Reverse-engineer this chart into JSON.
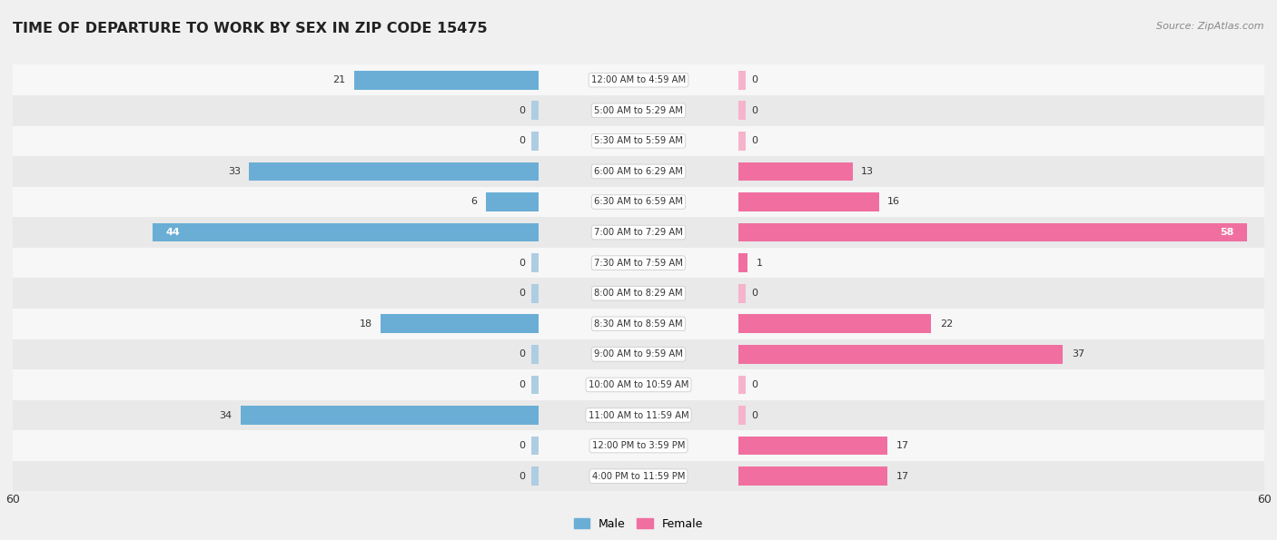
{
  "title": "TIME OF DEPARTURE TO WORK BY SEX IN ZIP CODE 15475",
  "source": "Source: ZipAtlas.com",
  "categories": [
    "12:00 AM to 4:59 AM",
    "5:00 AM to 5:29 AM",
    "5:30 AM to 5:59 AM",
    "6:00 AM to 6:29 AM",
    "6:30 AM to 6:59 AM",
    "7:00 AM to 7:29 AM",
    "7:30 AM to 7:59 AM",
    "8:00 AM to 8:29 AM",
    "8:30 AM to 8:59 AM",
    "9:00 AM to 9:59 AM",
    "10:00 AM to 10:59 AM",
    "11:00 AM to 11:59 AM",
    "12:00 PM to 3:59 PM",
    "4:00 PM to 11:59 PM"
  ],
  "male_values": [
    21,
    0,
    0,
    33,
    6,
    44,
    0,
    0,
    18,
    0,
    0,
    34,
    0,
    0
  ],
  "female_values": [
    0,
    0,
    0,
    13,
    16,
    58,
    1,
    0,
    22,
    37,
    0,
    0,
    17,
    17
  ],
  "male_color_dark": "#6aaed6",
  "male_color_light": "#aecde3",
  "female_color_dark": "#f06fa0",
  "female_color_light": "#f5b4cc",
  "axis_limit": 60,
  "bg_color": "#f0f0f0",
  "row_even_color": "#f7f7f7",
  "row_odd_color": "#e9e9e9",
  "label_dark": "#333333",
  "label_white": "#ffffff",
  "title_color": "#222222",
  "source_color": "#888888",
  "center_box_fc": "#ffffff",
  "center_box_ec": "#cccccc",
  "legend_male_color": "#6aaed6",
  "legend_female_color": "#f06fa0"
}
